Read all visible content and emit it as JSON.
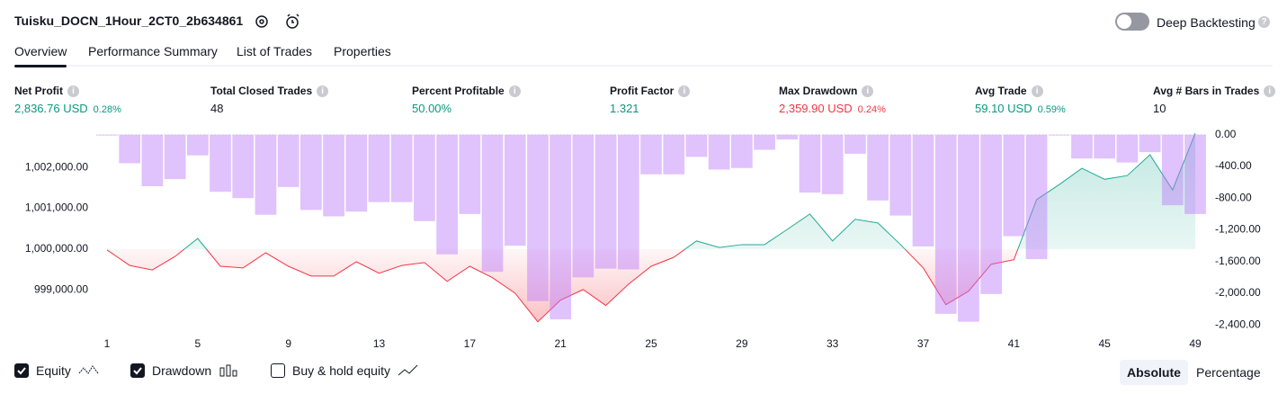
{
  "header": {
    "title": "Tuisku_DOCN_1Hour_2CT0_2b634861",
    "toggle_label": "Deep Backtesting"
  },
  "tabs": [
    "Overview",
    "Performance Summary",
    "List of Trades",
    "Properties"
  ],
  "metrics": [
    {
      "label": "Net Profit",
      "value": "2,836.76 USD",
      "percent": "0.28%",
      "color": "#089981"
    },
    {
      "label": "Total Closed Trades",
      "value": "48",
      "color": "#131722"
    },
    {
      "label": "Percent Profitable",
      "value": "50.00%",
      "color": "#089981"
    },
    {
      "label": "Profit Factor",
      "value": "1.321",
      "color": "#089981"
    },
    {
      "label": "Max Drawdown",
      "value": "2,359.90 USD",
      "percent": "0.24%",
      "color": "#f23645"
    },
    {
      "label": "Avg Trade",
      "value": "59.10 USD",
      "percent": "0.59%",
      "color": "#089981"
    },
    {
      "label": "Avg # Bars in Trades",
      "value": "10",
      "color": "#131722"
    }
  ],
  "chart_data": {
    "type": "line",
    "x": [
      1,
      2,
      3,
      4,
      5,
      6,
      7,
      8,
      9,
      10,
      11,
      12,
      13,
      14,
      15,
      16,
      17,
      18,
      19,
      20,
      21,
      22,
      23,
      24,
      25,
      26,
      27,
      28,
      29,
      30,
      31,
      32,
      33,
      34,
      35,
      36,
      37,
      38,
      39,
      40,
      41,
      42,
      43,
      44,
      45,
      46,
      47,
      48,
      49
    ],
    "xlim": [
      1,
      49
    ],
    "xticks": [
      1,
      5,
      9,
      13,
      17,
      21,
      25,
      29,
      33,
      37,
      41,
      45,
      49
    ],
    "ylim": [
      997950,
      1002840
    ],
    "yticks": [
      {
        "value": 999000,
        "label": "999,000.00"
      },
      {
        "value": 1000000,
        "label": "1,000,000.00"
      },
      {
        "value": 1001000,
        "label": "1,001,000.00"
      },
      {
        "value": 1002000,
        "label": "1,002,000.00"
      }
    ],
    "y2lim": [
      -2500,
      20
    ],
    "y2ticks": [
      {
        "value": 0,
        "label": "0.00"
      },
      {
        "value": -400,
        "label": "-400.00"
      },
      {
        "value": -800,
        "label": "-800.00"
      },
      {
        "value": -1200,
        "label": "-1,200.00"
      },
      {
        "value": -1600,
        "label": "-1,600.00"
      },
      {
        "value": -2000,
        "label": "-2,000.00"
      },
      {
        "value": -2400,
        "label": "-2,400.00"
      }
    ],
    "baseline": 1000000,
    "series": [
      {
        "name": "Equity",
        "type": "line",
        "axis": "y",
        "color": "#22ab94",
        "color_below": "#f23645",
        "values": [
          999980,
          999600,
          999490,
          999820,
          1000260,
          999580,
          999540,
          999910,
          999580,
          999340,
          999340,
          999690,
          999410,
          999600,
          999670,
          999210,
          999580,
          999300,
          998920,
          998220,
          998750,
          999010,
          998620,
          999140,
          999580,
          999800,
          1000200,
          1000040,
          1000110,
          1000110,
          1000480,
          1000860,
          1000200,
          1000730,
          1000640,
          1000110,
          999540,
          998640,
          998970,
          999630,
          999740,
          1001210,
          1001580,
          1001980,
          1001710,
          1001800,
          1002310,
          1001450,
          1002837
        ]
      },
      {
        "name": "Drawdown",
        "type": "bar",
        "axis": "y2",
        "color": "rgba(186,120,250,0.45)",
        "values": [
          -10,
          -360,
          -650,
          -560,
          -260,
          -720,
          -800,
          -1010,
          -660,
          -950,
          -1030,
          -970,
          -850,
          -850,
          -1090,
          -1510,
          -1000,
          -1730,
          -1400,
          -2100,
          -2330,
          -1800,
          -1690,
          -1700,
          -500,
          -500,
          -280,
          -440,
          -420,
          -190,
          -60,
          -730,
          -750,
          -240,
          -830,
          -1020,
          -1410,
          -2260,
          -2359.9,
          -2010,
          -1280,
          -1570,
          -10,
          -300,
          -300,
          -350,
          -220,
          -890,
          -1000
        ]
      },
      {
        "name": "Buy & hold equity",
        "type": "line",
        "axis": "y",
        "visible": false
      }
    ]
  },
  "footer": {
    "modes": [
      "Absolute",
      "Percentage"
    ]
  }
}
